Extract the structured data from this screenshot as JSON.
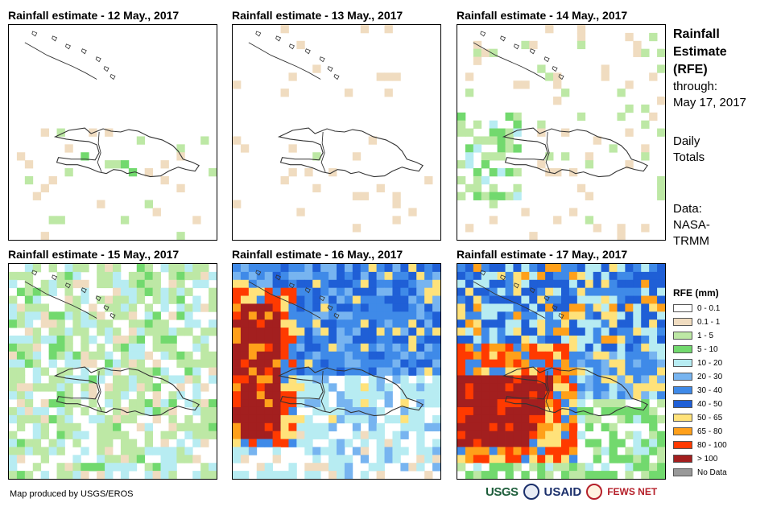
{
  "panels": [
    {
      "title": "Rainfall estimate - 12 May., 2017"
    },
    {
      "title": "Rainfall estimate - 13 May., 2017"
    },
    {
      "title": "Rainfall estimate - 14 May., 2017"
    },
    {
      "title": "Rainfall estimate - 15 May., 2017"
    },
    {
      "title": "Rainfall estimate - 16 May., 2017"
    },
    {
      "title": "Rainfall estimate - 17 May., 2017"
    }
  ],
  "side": {
    "title_line1": "Rainfall",
    "title_line2": "Estimate",
    "title_line3": "(RFE)",
    "through_label": "through:",
    "through_date": "May 17, 2017",
    "daily_line1": "Daily",
    "daily_line2": "Totals",
    "data_line1": "Data:",
    "data_line2": "NASA-",
    "data_line3": "TRMM"
  },
  "legend": {
    "title": "RFE (mm)",
    "classes": [
      {
        "label": "0 - 0.1",
        "color": "#ffffff"
      },
      {
        "label": "0.1 - 1",
        "color": "#f0dcc0"
      },
      {
        "label": "1 - 5",
        "color": "#bde8a5"
      },
      {
        "label": "5 - 10",
        "color": "#72d96e"
      },
      {
        "label": "10 - 20",
        "color": "#b7ecf2"
      },
      {
        "label": "20 - 30",
        "color": "#77b4f0"
      },
      {
        "label": "30 - 40",
        "color": "#3f8ae8"
      },
      {
        "label": "40 - 50",
        "color": "#1f5fd6"
      },
      {
        "label": "50 - 65",
        "color": "#ffe27a"
      },
      {
        "label": "65 - 80",
        "color": "#ffa01a"
      },
      {
        "label": "80 - 100",
        "color": "#ff3a00"
      },
      {
        "label": "> 100",
        "color": "#a31f1f"
      },
      {
        "label": "No Data",
        "color": "#999999"
      }
    ]
  },
  "credit": "Map produced by USGS/EROS",
  "logos": {
    "usgs": "USGS",
    "usaid": "USAID",
    "fews": "FEWS NET"
  }
}
